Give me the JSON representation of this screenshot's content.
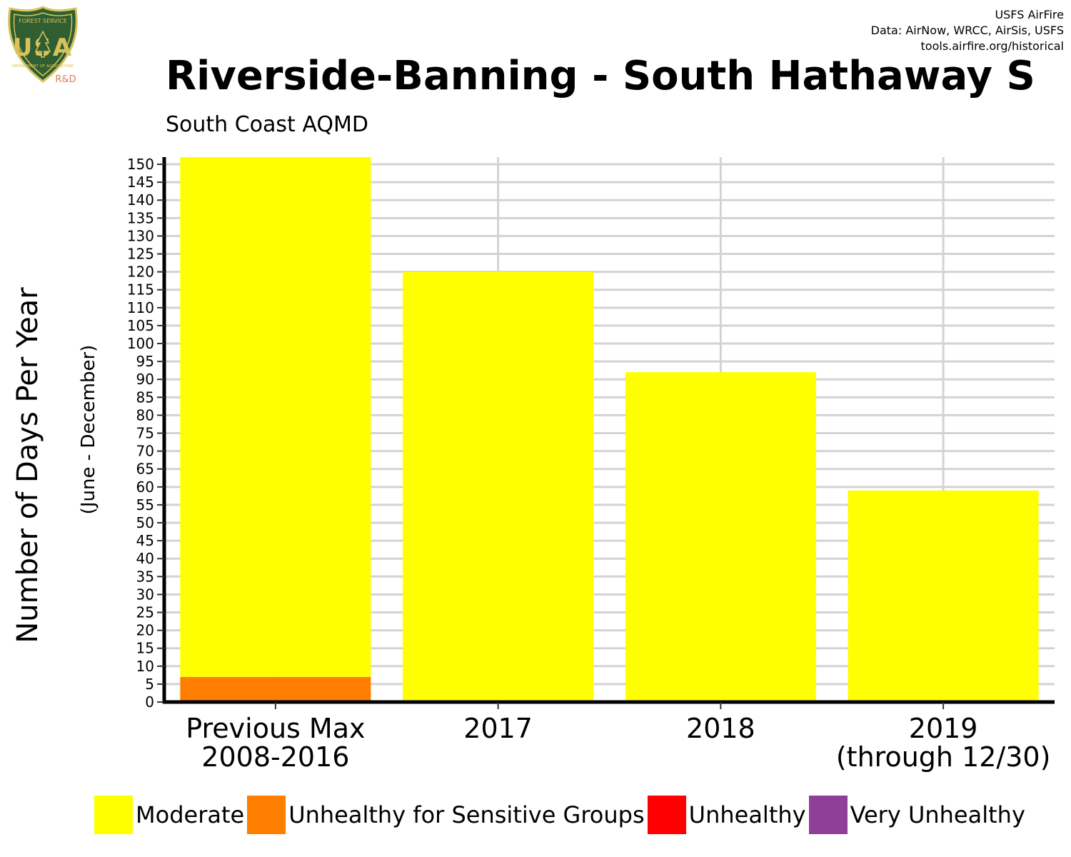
{
  "logo": {
    "top_text": "FOREST SERVICE",
    "letters": "USA",
    "bottom_text": "DEPARTMENT OF AGRICULTURE",
    "badge": "R&D"
  },
  "credits": {
    "line1": "USFS AirFire",
    "line2": "Data: AirNow, WRCC, AirSis, USFS",
    "line3": "tools.airfire.org/historical"
  },
  "colors": {
    "Moderate": "#ffff00",
    "Unhealthy for Sensitive Groups": "#ff7e00",
    "Unhealthy": "#ff0000",
    "Very Unhealthy": "#8f3f97",
    "grid": "#d3d3d3",
    "axis": "#000000"
  },
  "chart_data": {
    "type": "bar",
    "title": "Riverside-Banning - South Hathaway S",
    "subtitle": "South Coast AQMD",
    "ylabel": "Number of Days Per Year",
    "ylabel2": "(June - December)",
    "xlabel": "",
    "ylim": [
      0,
      152
    ],
    "yticks": [
      0,
      5,
      10,
      15,
      20,
      25,
      30,
      35,
      40,
      45,
      50,
      55,
      60,
      65,
      70,
      75,
      80,
      85,
      90,
      95,
      100,
      105,
      110,
      115,
      120,
      125,
      130,
      135,
      140,
      145,
      150
    ],
    "categories": [
      [
        "Previous Max",
        "2008-2016"
      ],
      [
        "2017"
      ],
      [
        "2018"
      ],
      [
        "2019",
        "(through 12/30)"
      ]
    ],
    "stacked": true,
    "grid": true,
    "legend_position": "bottom",
    "series": [
      {
        "name": "Unhealthy for Sensitive Groups",
        "values": [
          7,
          0,
          0,
          0
        ]
      },
      {
        "name": "Moderate",
        "values": [
          145,
          120,
          92,
          59
        ]
      },
      {
        "name": "Unhealthy",
        "values": [
          0,
          0,
          0,
          0
        ]
      },
      {
        "name": "Very Unhealthy",
        "values": [
          0,
          0,
          0,
          0
        ]
      }
    ],
    "legend": [
      "Moderate",
      "Unhealthy for Sensitive Groups",
      "Unhealthy",
      "Very Unhealthy"
    ]
  }
}
